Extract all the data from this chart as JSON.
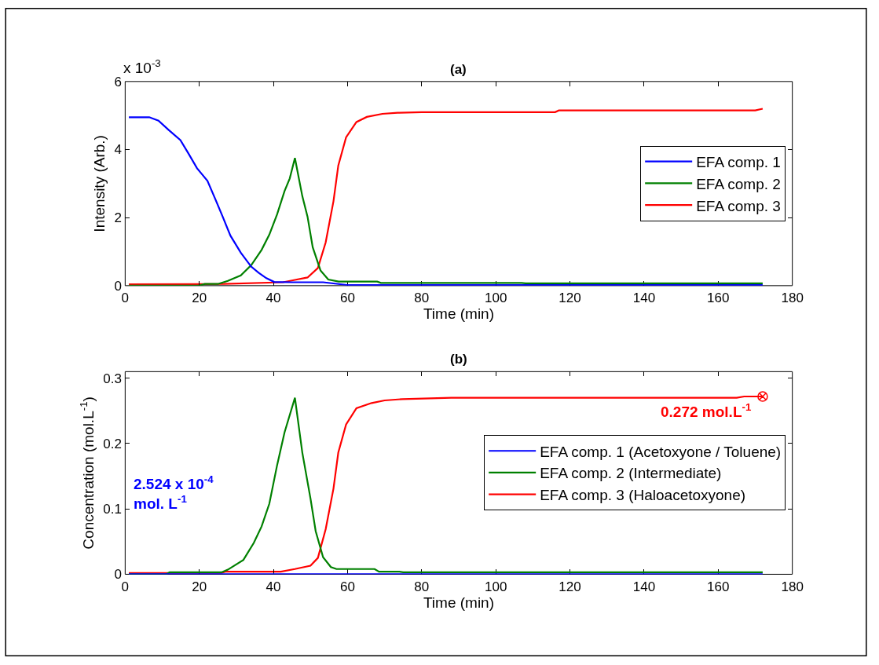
{
  "chart_data": [
    {
      "type": "line",
      "title": "(a)",
      "xlabel": "Time (min)",
      "ylabel": "Intensity (Arb.)",
      "xlim": [
        0,
        180
      ],
      "xticks": [
        0,
        20,
        40,
        60,
        80,
        100,
        120,
        140,
        160,
        180
      ],
      "ylim": [
        0,
        6
      ],
      "yticks": [
        0,
        2,
        4,
        6
      ],
      "legend": "right",
      "line_style": "solid",
      "marker": "none",
      "annotations": [
        "x 10$^{-3}$"
      ],
      "series": [
        {
          "name": "EFA comp. 1",
          "color": "#0000ff",
          "x": [
            1,
            6.5,
            9,
            11.7,
            14.9,
            17,
            19.4,
            22.2,
            24.3,
            26.3,
            28.4,
            31.2,
            34,
            36,
            38.1,
            40.2,
            45,
            53.4,
            60,
            100,
            140,
            172
          ],
          "values": [
            4.95,
            4.95,
            4.85,
            4.58,
            4.28,
            3.9,
            3.45,
            3.08,
            2.55,
            2.03,
            1.47,
            0.97,
            0.56,
            0.38,
            0.22,
            0.11,
            0.1,
            0.1,
            0.02,
            0.02,
            0.02,
            0.02
          ]
        },
        {
          "name": "EFA comp. 2",
          "color": "#008000",
          "x": [
            1,
            20,
            21.5,
            25,
            27.7,
            31.2,
            34,
            36.8,
            38.9,
            41,
            43,
            44.4,
            45.8,
            47.8,
            49.2,
            50.6,
            52.7,
            54.8,
            57.6,
            68,
            69,
            107,
            108,
            172
          ],
          "values": [
            0,
            0,
            0.05,
            0.05,
            0.14,
            0.3,
            0.6,
            1.05,
            1.5,
            2.1,
            2.78,
            3.15,
            3.75,
            2.63,
            2.03,
            1.13,
            0.45,
            0.18,
            0.12,
            0.12,
            0.08,
            0.08,
            0.07,
            0.07
          ]
        },
        {
          "name": "EFA comp. 3",
          "color": "#ff0000",
          "x": [
            1,
            26.6,
            42.6,
            45.8,
            49.2,
            52,
            54.1,
            56.2,
            57.5,
            59.6,
            62.4,
            65.2,
            69.4,
            73.5,
            80,
            116,
            117,
            170,
            172
          ],
          "values": [
            0.04,
            0.05,
            0.1,
            0.17,
            0.24,
            0.52,
            1.27,
            2.48,
            3.53,
            4.36,
            4.81,
            4.96,
            5.05,
            5.08,
            5.1,
            5.1,
            5.15,
            5.15,
            5.2
          ]
        }
      ]
    },
    {
      "type": "line",
      "title": "(b)",
      "xlabel": "Time (min)",
      "ylabel": "Concentration (mol.L$^{-1}$)",
      "xlim": [
        0,
        180
      ],
      "xticks": [
        0,
        20,
        40,
        60,
        80,
        100,
        120,
        140,
        160,
        180
      ],
      "ylim": [
        0,
        0.31
      ],
      "yticks": [
        0,
        0.1,
        0.2,
        0.3
      ],
      "legend": "right",
      "line_style": "solid",
      "marker": "none",
      "annotations": [
        "2.524 x 10$^{-4}$\nmol. L$^{-1}$",
        {
          "text": "0.272 mol.L$^{-1}$",
          "x": 172,
          "y": 0.272
        }
      ],
      "series": [
        {
          "name": "EFA comp. 1 (Acetoxyone / Toluene)",
          "color": "#0000ff",
          "x": [
            1,
            172
          ],
          "values": [
            0,
            0
          ]
        },
        {
          "name": "EFA comp. 2 (Intermediate)",
          "color": "#008000",
          "x": [
            1,
            11,
            12,
            26,
            27.7,
            31.9,
            34.7,
            36.8,
            38.9,
            41,
            43,
            45.8,
            47.8,
            50,
            51.4,
            53.4,
            55.5,
            57,
            67.3,
            68.5,
            74,
            75,
            128,
            129,
            172
          ],
          "values": [
            0,
            0,
            0.003,
            0.003,
            0.007,
            0.022,
            0.048,
            0.073,
            0.108,
            0.167,
            0.217,
            0.27,
            0.186,
            0.116,
            0.066,
            0.026,
            0.011,
            0.008,
            0.008,
            0.004,
            0.004,
            0.003,
            0.003,
            0.003,
            0.003
          ]
        },
        {
          "name": "EFA comp. 3 (Haloacetoxyone)",
          "color": "#ff0000",
          "x": [
            1,
            26,
            27,
            42,
            45.8,
            50,
            52,
            54.1,
            56.2,
            57.5,
            59.6,
            62.4,
            66.5,
            70,
            74.8,
            88,
            165,
            167,
            172
          ],
          "values": [
            0.002,
            0.002,
            0.004,
            0.004,
            0.008,
            0.013,
            0.025,
            0.069,
            0.131,
            0.186,
            0.229,
            0.254,
            0.262,
            0.266,
            0.268,
            0.27,
            0.27,
            0.272,
            0.272
          ]
        }
      ]
    }
  ]
}
